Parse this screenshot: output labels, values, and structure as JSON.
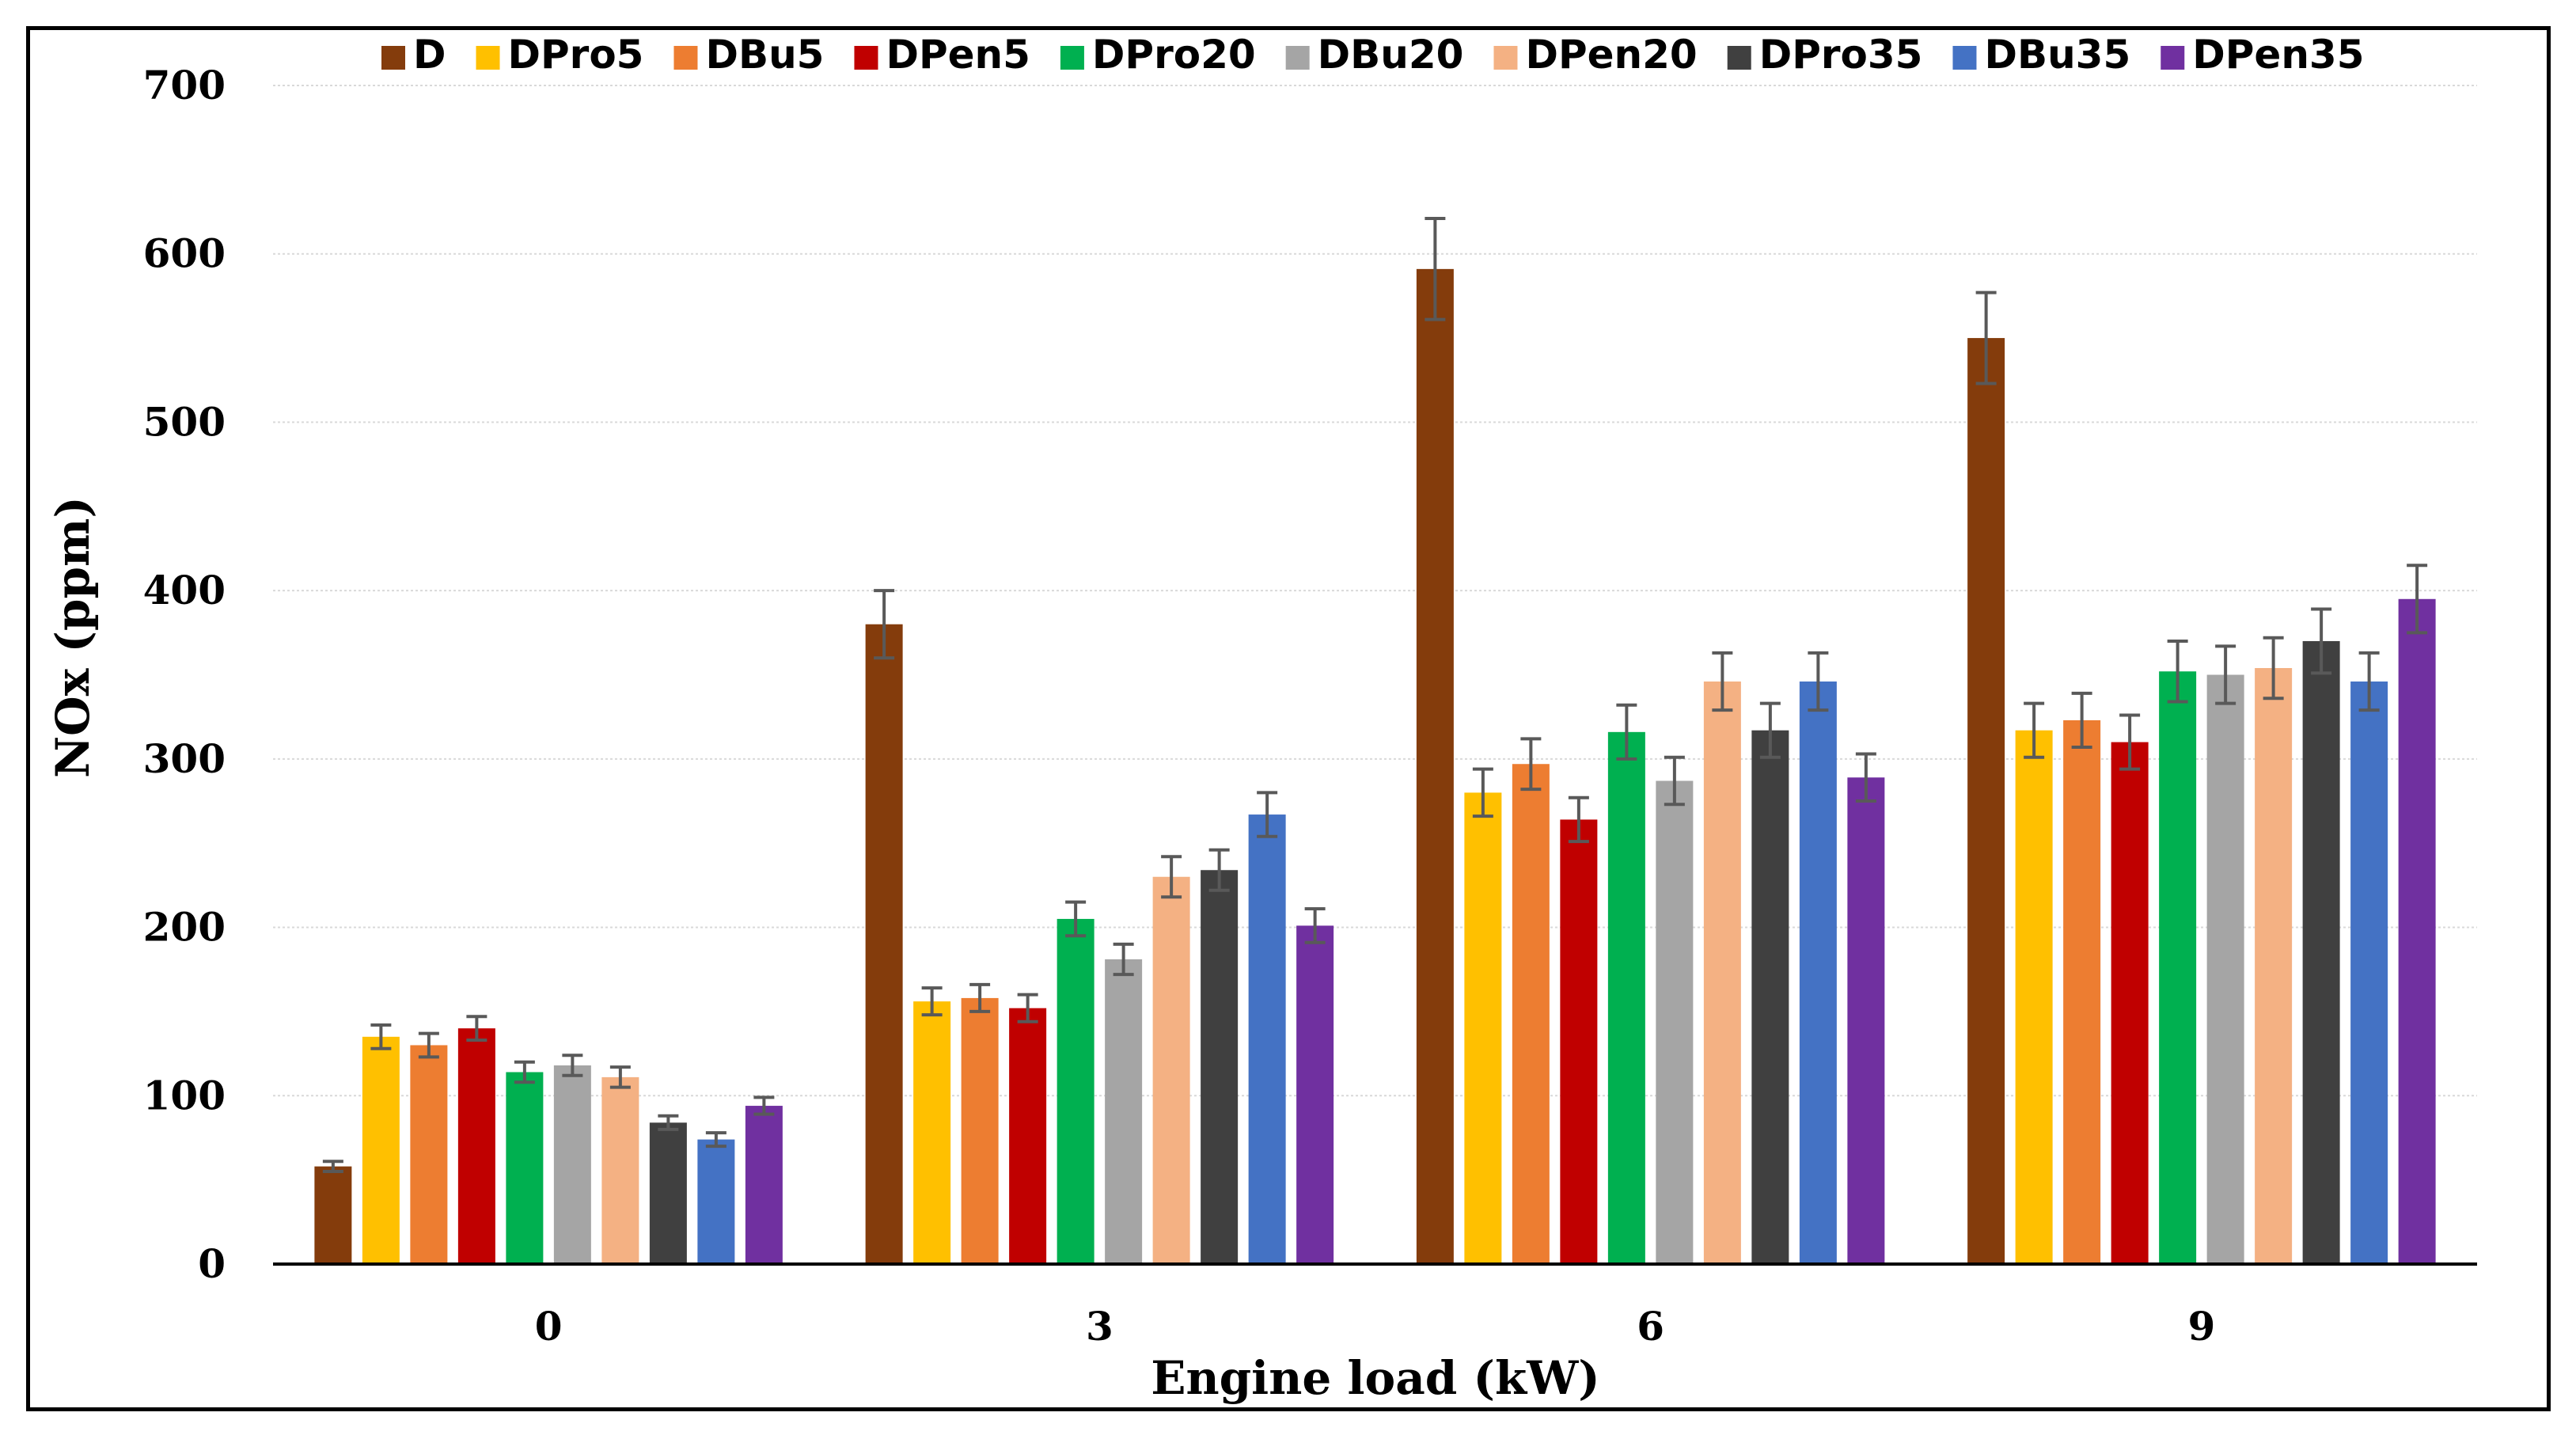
{
  "chart_data": {
    "type": "bar",
    "title": "",
    "xlabel": "Engine load (kW)",
    "ylabel": "NOx (ppm)",
    "ylim": [
      0,
      700
    ],
    "yticks": [
      0,
      100,
      200,
      300,
      400,
      500,
      600,
      700
    ],
    "grid": true,
    "legend_position": "top",
    "categories": [
      "0",
      "3",
      "6",
      "9"
    ],
    "series": [
      {
        "name": "D",
        "color": "#843C0C",
        "values": [
          58,
          380,
          591,
          550
        ],
        "errors": [
          3,
          20,
          30,
          27
        ]
      },
      {
        "name": "DPro5",
        "color": "#FFC000",
        "values": [
          135,
          156,
          280,
          317
        ],
        "errors": [
          7,
          8,
          14,
          16
        ]
      },
      {
        "name": "DBu5",
        "color": "#ED7D31",
        "values": [
          130,
          158,
          297,
          323
        ],
        "errors": [
          7,
          8,
          15,
          16
        ]
      },
      {
        "name": "DPen5",
        "color": "#C00000",
        "values": [
          140,
          152,
          264,
          310
        ],
        "errors": [
          7,
          8,
          13,
          16
        ]
      },
      {
        "name": "DPro20",
        "color": "#00B050",
        "values": [
          114,
          205,
          316,
          352
        ],
        "errors": [
          6,
          10,
          16,
          18
        ]
      },
      {
        "name": "DBu20",
        "color": "#A5A5A5",
        "values": [
          118,
          181,
          287,
          350
        ],
        "errors": [
          6,
          9,
          14,
          17
        ]
      },
      {
        "name": "DPen20",
        "color": "#F4B183",
        "values": [
          111,
          230,
          346,
          354
        ],
        "errors": [
          6,
          12,
          17,
          18
        ]
      },
      {
        "name": "DPro35",
        "color": "#404040",
        "values": [
          84,
          234,
          317,
          370
        ],
        "errors": [
          4,
          12,
          16,
          19
        ]
      },
      {
        "name": "DBu35",
        "color": "#4472C4",
        "values": [
          74,
          267,
          346,
          346
        ],
        "errors": [
          4,
          13,
          17,
          17
        ]
      },
      {
        "name": "DPen35",
        "color": "#7030A0",
        "values": [
          94,
          201,
          289,
          395
        ],
        "errors": [
          5,
          10,
          14,
          20
        ]
      }
    ]
  }
}
